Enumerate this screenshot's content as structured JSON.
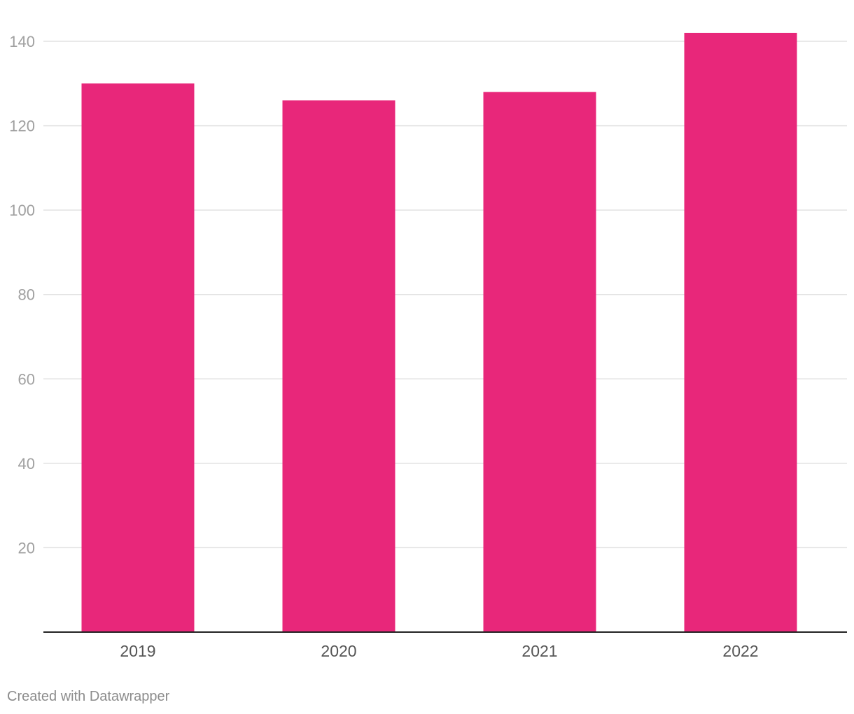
{
  "chart_data": {
    "type": "bar",
    "categories": [
      "2019",
      "2020",
      "2021",
      "2022"
    ],
    "values": [
      130,
      126,
      128,
      142
    ],
    "title": "",
    "xlabel": "",
    "ylabel": "",
    "ylim": [
      0,
      140
    ],
    "yticks": [
      20,
      40,
      60,
      80,
      100,
      120,
      140
    ],
    "grid": true,
    "bar_color": "#e8277a",
    "legend": "none"
  },
  "footer": {
    "credit": "Created with Datawrapper"
  }
}
